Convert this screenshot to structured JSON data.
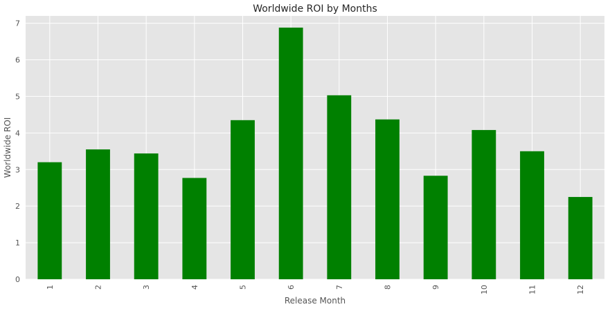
{
  "chart_data": {
    "type": "bar",
    "title": "Worldwide ROI by Months",
    "xlabel": "Release Month",
    "ylabel": "Worldwide ROI",
    "categories": [
      "1",
      "2",
      "3",
      "4",
      "5",
      "6",
      "7",
      "8",
      "9",
      "10",
      "11",
      "12"
    ],
    "values": [
      3.2,
      3.55,
      3.44,
      2.77,
      4.35,
      6.88,
      5.03,
      4.37,
      2.83,
      4.08,
      3.5,
      2.25
    ],
    "ylim": [
      0,
      7.2
    ],
    "yticks": [
      0,
      1,
      2,
      3,
      4,
      5,
      6,
      7
    ],
    "grid": true,
    "legend": "none",
    "colors": {
      "bar": "#008000",
      "background": "#e5e5e5",
      "grid": "#ffffff"
    }
  }
}
